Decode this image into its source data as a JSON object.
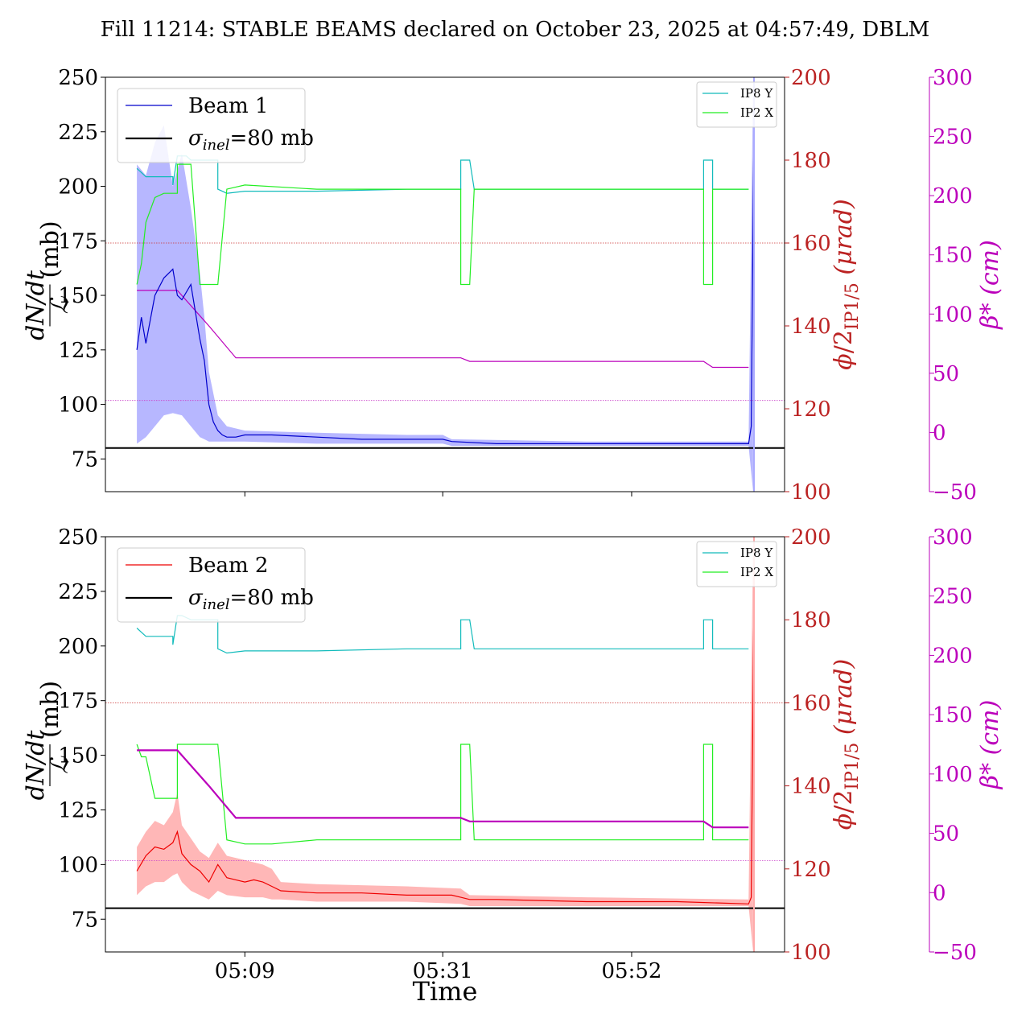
{
  "title": "Fill 11214: STABLE BEAMS declared on October 23, 2025 at 04:57:49, DBLM",
  "xlabel": "Time",
  "colors": {
    "beam1": "#0000cc",
    "beam1_band": "#aaaaff",
    "beam2": "#ee0000",
    "beam2_band": "#ffaaaa",
    "ip8y": "#11bbbb",
    "ip2x": "#22ee22",
    "beta": "#bb00bb",
    "crossing_axis": "#bb2222",
    "sigma": "#000000"
  },
  "chart_data": [
    {
      "type": "line",
      "panel": "top",
      "x_ticks": [
        "05:09",
        "05:31",
        "05:52"
      ],
      "x_tick_values": [
        12,
        34,
        55
      ],
      "xlim": [
        -3.5,
        72
      ],
      "y_left": {
        "ticks": [
          "75",
          "100",
          "125",
          "150",
          "175",
          "200",
          "225",
          "250"
        ],
        "ylim": [
          60,
          250
        ]
      },
      "y_right_crossing": {
        "ticks": [
          "100",
          "120",
          "140",
          "160",
          "180",
          "200"
        ],
        "ylim": [
          100,
          200
        ]
      },
      "y_right_beta": {
        "ticks": [
          "−50",
          "0",
          "50",
          "100",
          "150",
          "200",
          "250",
          "300"
        ],
        "ylim": [
          -50,
          300
        ]
      },
      "legend_main": [
        {
          "label": "Beam 1"
        },
        {
          "label_prefix": "σ",
          "label_sub": "inel",
          "label_suffix": "=80 mb"
        }
      ],
      "legend_small": [
        {
          "label": "IP8 Y"
        },
        {
          "label": "IP2 X"
        }
      ],
      "sigma_inel": 80,
      "ref_lines_crossing": [
        160,
        122
      ],
      "series": [
        {
          "name": "Beam 1",
          "axis": "left",
          "x": [
            0,
            0.5,
            1,
            2,
            3,
            4,
            4.5,
            5,
            6,
            7,
            7.5,
            8,
            8.5,
            9,
            9.5,
            10,
            11,
            12,
            15,
            20,
            25,
            30,
            34,
            35,
            40,
            50,
            60,
            68,
            68.3,
            68.6
          ],
          "y": [
            125,
            140,
            128,
            150,
            158,
            162,
            150,
            148,
            155,
            130,
            120,
            100,
            92,
            88,
            86,
            85,
            85,
            86,
            86,
            85,
            84,
            84,
            84,
            83,
            82,
            82,
            82,
            82,
            90,
            230
          ]
        },
        {
          "name": "Beam 1 band upper",
          "axis": "left",
          "x": [
            0,
            1,
            2,
            3,
            4,
            5,
            6,
            7,
            7.5,
            8,
            9,
            10,
            12,
            20,
            30,
            34,
            35,
            50,
            68,
            68.5
          ],
          "y": [
            210,
            205,
            220,
            228,
            200,
            215,
            190,
            160,
            140,
            115,
            95,
            90,
            88,
            87,
            86,
            86,
            84,
            83,
            83,
            250
          ]
        },
        {
          "name": "Beam 1 band lower",
          "axis": "left",
          "x": [
            0,
            1,
            2,
            3,
            4,
            5,
            6,
            7,
            7.5,
            8,
            9,
            10,
            12,
            20,
            30,
            34,
            35,
            50,
            68,
            68.5
          ],
          "y": [
            82,
            85,
            90,
            95,
            96,
            95,
            90,
            85,
            84,
            83,
            83,
            83,
            83,
            82,
            82,
            82,
            81,
            81,
            81,
            60
          ]
        },
        {
          "name": "IP8 Y",
          "axis": "crossing",
          "x": [
            0,
            0.5,
            1,
            2,
            3,
            4,
            4,
            4.5,
            5,
            5.5,
            6,
            7,
            8,
            9,
            9,
            10,
            12,
            15,
            20,
            30,
            36,
            36,
            36.5,
            37,
            37.5,
            45,
            55,
            63,
            63,
            64,
            64,
            66,
            68
          ],
          "y": [
            178,
            177,
            176,
            176,
            176,
            176,
            174,
            181,
            181,
            181,
            180,
            180,
            180,
            180,
            173,
            172,
            172.5,
            172.5,
            172.5,
            173,
            173,
            180,
            180,
            180,
            173,
            173,
            173,
            173,
            180,
            180,
            173,
            173,
            173
          ]
        },
        {
          "name": "IP2 X",
          "axis": "crossing",
          "x": [
            0,
            0.5,
            1,
            2,
            3,
            4,
            4.5,
            4.5,
            5,
            6,
            7,
            8,
            9,
            9,
            10,
            12,
            20,
            36,
            36,
            36.5,
            37,
            37.5,
            63,
            63,
            64,
            64,
            68
          ],
          "y": [
            150,
            155,
            165,
            171,
            172,
            172,
            172,
            179,
            179,
            179,
            150,
            150,
            150,
            150,
            173,
            174,
            173,
            173,
            150,
            150,
            150,
            173,
            173,
            150,
            150,
            173,
            173
          ]
        },
        {
          "name": "β*",
          "axis": "beta",
          "x": [
            0,
            4.5,
            8,
            11,
            20,
            36,
            37,
            50,
            63,
            64,
            68
          ],
          "y": [
            120,
            120,
            90,
            63,
            63,
            63,
            60,
            60,
            60,
            55,
            55
          ]
        }
      ]
    },
    {
      "type": "line",
      "panel": "bottom",
      "x_ticks": [
        "05:09",
        "05:31",
        "05:52"
      ],
      "x_tick_values": [
        12,
        34,
        55
      ],
      "xlim": [
        -3.5,
        72
      ],
      "y_left": {
        "ticks": [
          "75",
          "100",
          "125",
          "150",
          "175",
          "200",
          "225",
          "250"
        ],
        "ylim": [
          60,
          250
        ]
      },
      "y_right_crossing": {
        "ticks": [
          "100",
          "120",
          "140",
          "160",
          "180",
          "200"
        ],
        "ylim": [
          100,
          200
        ]
      },
      "y_right_beta": {
        "ticks": [
          "−50",
          "0",
          "50",
          "100",
          "150",
          "200",
          "250",
          "300"
        ],
        "ylim": [
          -50,
          300
        ]
      },
      "legend_main": [
        {
          "label": "Beam 2"
        },
        {
          "label_prefix": "σ",
          "label_sub": "inel",
          "label_suffix": "=80 mb"
        }
      ],
      "legend_small": [
        {
          "label": "IP8 Y"
        },
        {
          "label": "IP2 X"
        }
      ],
      "sigma_inel": 80,
      "ref_lines_crossing": [
        160,
        122
      ],
      "series": [
        {
          "name": "Beam 2",
          "axis": "left",
          "x": [
            0,
            1,
            2,
            3,
            4,
            4.5,
            5,
            6,
            7,
            8,
            9,
            10,
            11,
            12,
            13,
            14,
            15,
            16,
            20,
            25,
            30,
            35,
            36,
            37,
            40,
            50,
            60,
            68,
            68.3,
            68.6
          ],
          "y": [
            97,
            104,
            108,
            107,
            110,
            115,
            105,
            100,
            97,
            92,
            100,
            94,
            93,
            92,
            93,
            92,
            90,
            88,
            87,
            87,
            86,
            86,
            85,
            84,
            84,
            83,
            83,
            82,
            85,
            225
          ]
        },
        {
          "name": "Beam 2 band upper",
          "axis": "left",
          "x": [
            0,
            1,
            2,
            3,
            4,
            4.5,
            5,
            6,
            7,
            8,
            9,
            10,
            12,
            14,
            15,
            16,
            20,
            30,
            36,
            37,
            50,
            68,
            68.5
          ],
          "y": [
            108,
            115,
            120,
            118,
            124,
            133,
            118,
            112,
            106,
            103,
            110,
            104,
            102,
            100,
            98,
            92,
            91,
            90,
            89,
            86,
            85,
            84,
            250
          ]
        },
        {
          "name": "Beam 2 band lower",
          "axis": "left",
          "x": [
            0,
            1,
            2,
            3,
            4,
            4.5,
            5,
            6,
            7,
            8,
            9,
            10,
            12,
            14,
            15,
            16,
            20,
            30,
            36,
            37,
            50,
            68,
            68.5
          ],
          "y": [
            86,
            90,
            92,
            92,
            95,
            96,
            92,
            88,
            86,
            84,
            88,
            86,
            85,
            85,
            84,
            84,
            83,
            83,
            82,
            81,
            81,
            81,
            60
          ]
        },
        {
          "name": "IP8 Y",
          "axis": "crossing",
          "x": [
            0,
            0.5,
            1,
            2,
            3,
            4,
            4,
            4.5,
            5,
            6,
            7,
            8,
            9,
            9,
            10,
            12,
            15,
            20,
            30,
            36,
            36,
            36.5,
            37,
            37.5,
            45,
            55,
            63,
            63,
            64,
            64,
            66,
            68
          ],
          "y": [
            178,
            177,
            176,
            176,
            176,
            176,
            174,
            181,
            181,
            180,
            180,
            180,
            180,
            173,
            172,
            172.5,
            172.5,
            172.5,
            173,
            173,
            180,
            180,
            180,
            173,
            173,
            173,
            173,
            180,
            180,
            173,
            173,
            173
          ]
        },
        {
          "name": "IP2 X",
          "axis": "crossing",
          "x": [
            0,
            0.5,
            1,
            2,
            3,
            4,
            4.5,
            4.5,
            5,
            6,
            7,
            8,
            9,
            9,
            10,
            12,
            15,
            20,
            36,
            36,
            36.5,
            37,
            37.5,
            63,
            63,
            64,
            64,
            68
          ],
          "y": [
            150,
            147,
            147,
            137,
            137,
            137,
            137,
            150,
            150,
            150,
            150,
            150,
            150,
            150,
            127,
            126,
            126,
            127,
            127,
            150,
            150,
            150,
            127,
            127,
            150,
            150,
            127,
            127
          ]
        },
        {
          "name": "β*",
          "axis": "beta",
          "x": [
            0,
            4.5,
            8,
            11,
            20,
            36,
            37,
            50,
            63,
            64,
            68
          ],
          "y": [
            120,
            120,
            90,
            63,
            63,
            63,
            60,
            60,
            60,
            55,
            55
          ]
        }
      ]
    }
  ]
}
